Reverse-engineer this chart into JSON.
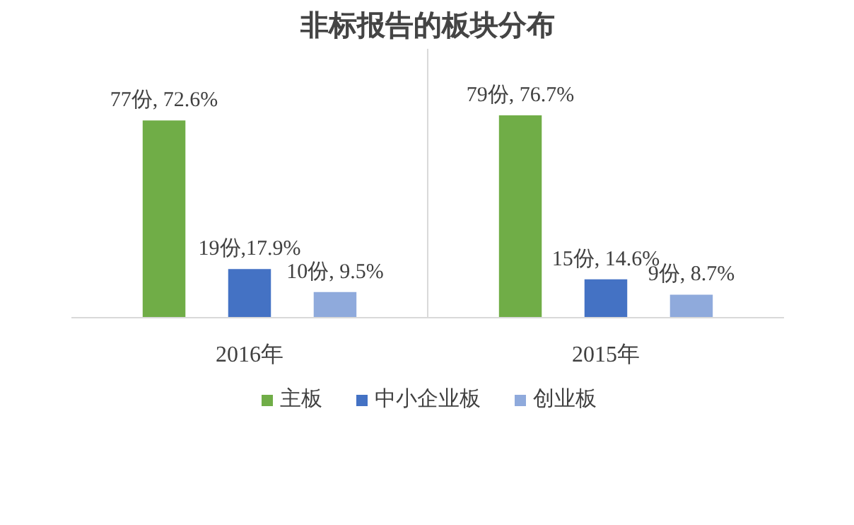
{
  "chart_data": {
    "type": "bar",
    "title": "非标报告的板块分布",
    "categories": [
      "2016年",
      "2015年"
    ],
    "series": [
      {
        "name": "主板",
        "color": "#70ad47",
        "values": [
          77,
          79
        ],
        "value_labels": [
          "77份, 72.6%",
          "79份, 76.7%"
        ]
      },
      {
        "name": "中小企业板",
        "color": "#4472c4",
        "values": [
          19,
          15
        ],
        "value_labels": [
          "19份,17.9%",
          "15份, 14.6%"
        ]
      },
      {
        "name": "创业板",
        "color": "#8faadc",
        "values": [
          10,
          9
        ],
        "value_labels": [
          "10份, 9.5%",
          "9份, 8.7%"
        ]
      }
    ],
    "ylim": [
      0,
      105
    ],
    "grid": false,
    "legend": "bottom"
  }
}
